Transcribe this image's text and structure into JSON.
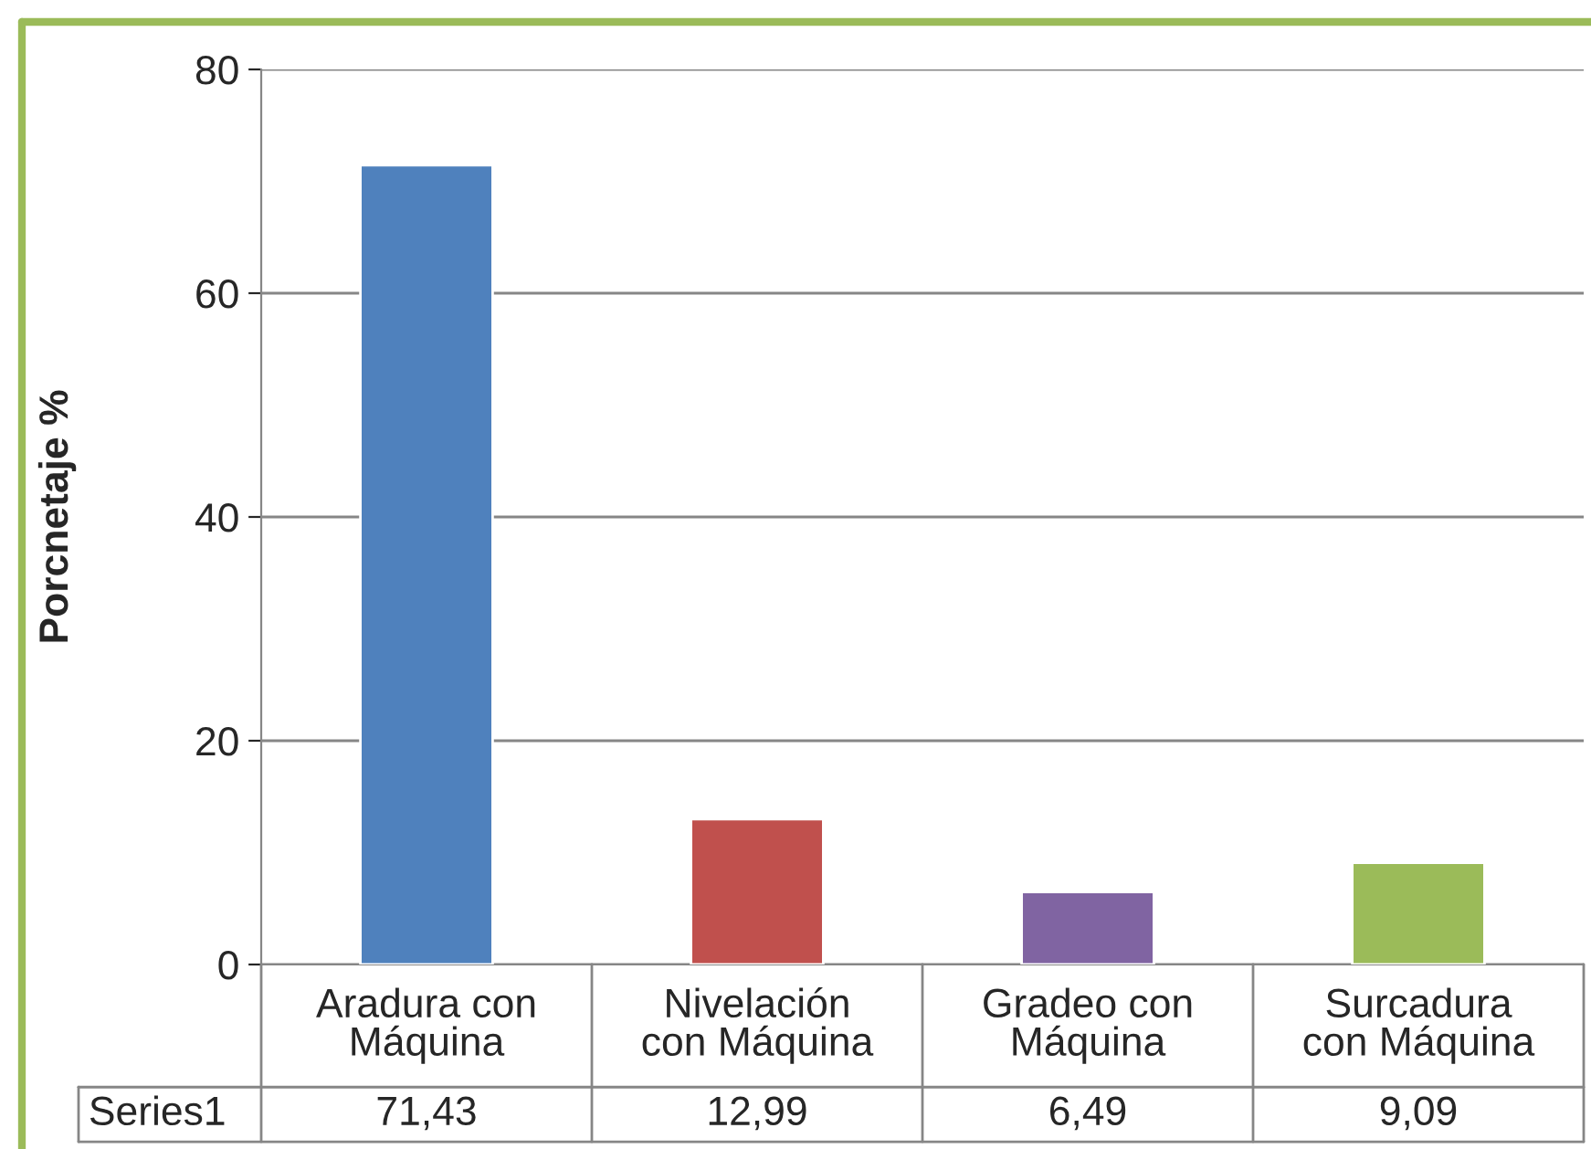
{
  "chart_data": {
    "type": "bar",
    "ylabel": "Porcnetaje %",
    "categories": [
      "Aradura con\nMáquina",
      "Nivelación\ncon Máquina",
      "Gradeo con\nMáquina",
      "Surcadura\ncon Máquina"
    ],
    "series": [
      {
        "name": "Series1",
        "values": [
          71.43,
          12.99,
          6.49,
          9.09
        ],
        "colors": [
          "#4f81bd",
          "#c0504d",
          "#8064a2",
          "#9bbb59"
        ],
        "value_labels": [
          "71,43",
          "12,99",
          "6,49",
          "9,09"
        ]
      }
    ],
    "ylim": [
      0,
      80
    ],
    "yticks": [
      0,
      20,
      40,
      60,
      80
    ],
    "grid": "y",
    "data_labels": true
  }
}
